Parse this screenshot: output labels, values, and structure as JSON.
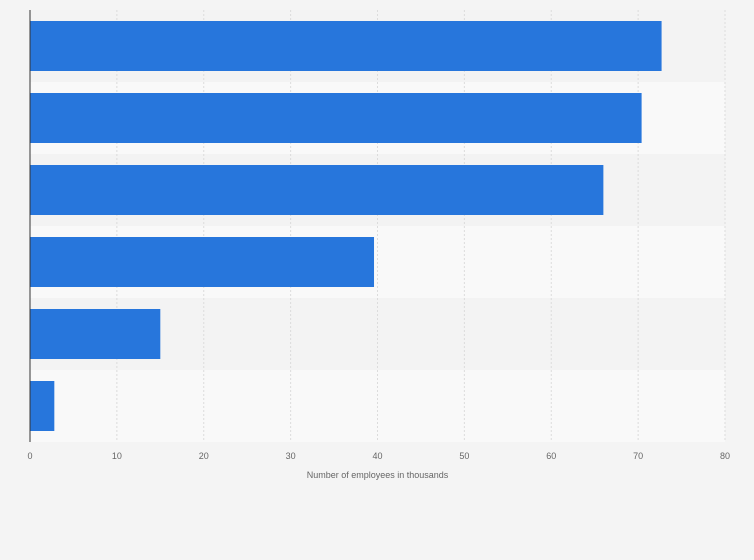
{
  "chart_data": {
    "type": "bar",
    "orientation": "horizontal",
    "title": "",
    "xlabel": "Number of employees in thousands",
    "ylabel": "",
    "categories": [
      "",
      "",
      "",
      "",
      "",
      ""
    ],
    "values": [
      72.7,
      70.4,
      66.0,
      39.6,
      15.0,
      2.8
    ],
    "xlim": [
      0,
      80
    ],
    "xticks": [
      "0",
      "10",
      "20",
      "30",
      "40",
      "50",
      "60",
      "70",
      "80"
    ],
    "grid": true,
    "legend": "none"
  },
  "colors": {
    "bar": "#2776dc",
    "background": "#f4f4f4",
    "band_light": "#f9f9f9",
    "band_dark": "#f3f3f3",
    "grid": "#dcdcdc",
    "axis": "#333333",
    "text": "#666666"
  }
}
